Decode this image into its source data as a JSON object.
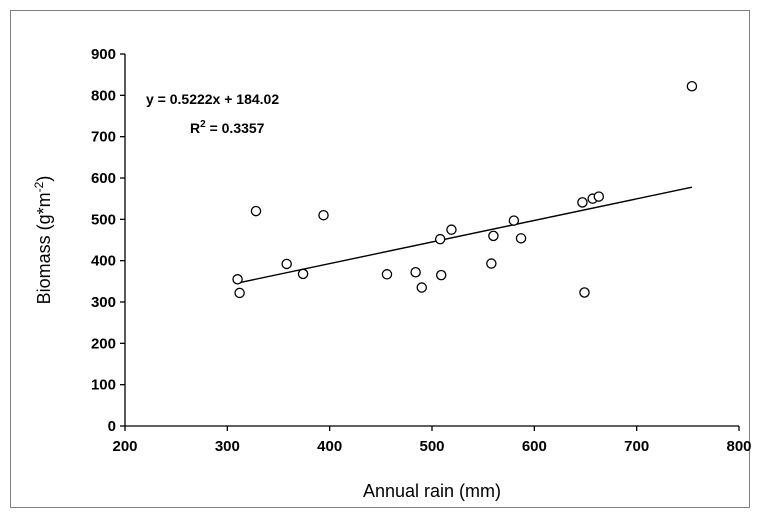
{
  "chart_data": {
    "type": "scatter",
    "title": "",
    "xlabel": "Annual rain (mm)",
    "ylabel": {
      "base": "Biomass (g*m",
      "sup": "-2",
      "end": ")"
    },
    "xlim": [
      200,
      800
    ],
    "ylim": [
      0,
      900
    ],
    "xticks": [
      200,
      300,
      400,
      500,
      600,
      700,
      800
    ],
    "yticks": [
      0,
      100,
      200,
      300,
      400,
      500,
      600,
      700,
      800,
      900
    ],
    "grid": false,
    "legend": "none",
    "marker": "open-circle",
    "colors": {
      "marker": "#000000",
      "trendline": "#000000",
      "frame": "#7f7f7f"
    },
    "points": [
      {
        "x": 310,
        "y": 355
      },
      {
        "x": 312,
        "y": 322
      },
      {
        "x": 328,
        "y": 520
      },
      {
        "x": 358,
        "y": 392
      },
      {
        "x": 374,
        "y": 368
      },
      {
        "x": 394,
        "y": 510
      },
      {
        "x": 456,
        "y": 367
      },
      {
        "x": 484,
        "y": 372
      },
      {
        "x": 490,
        "y": 335
      },
      {
        "x": 508,
        "y": 452
      },
      {
        "x": 509,
        "y": 365
      },
      {
        "x": 519,
        "y": 475
      },
      {
        "x": 558,
        "y": 393
      },
      {
        "x": 560,
        "y": 460
      },
      {
        "x": 580,
        "y": 497
      },
      {
        "x": 587,
        "y": 454
      },
      {
        "x": 647,
        "y": 541
      },
      {
        "x": 649,
        "y": 323
      },
      {
        "x": 657,
        "y": 550
      },
      {
        "x": 663,
        "y": 555
      },
      {
        "x": 754,
        "y": 822
      }
    ],
    "trendline": {
      "slope": 0.5222,
      "intercept": 184.02,
      "x_range": [
        310,
        754
      ],
      "equation_label": "y = 0.5222x + 184.02",
      "r2_prefix": "R",
      "r2_sup": "2",
      "r2_value": " = 0.3357"
    }
  }
}
